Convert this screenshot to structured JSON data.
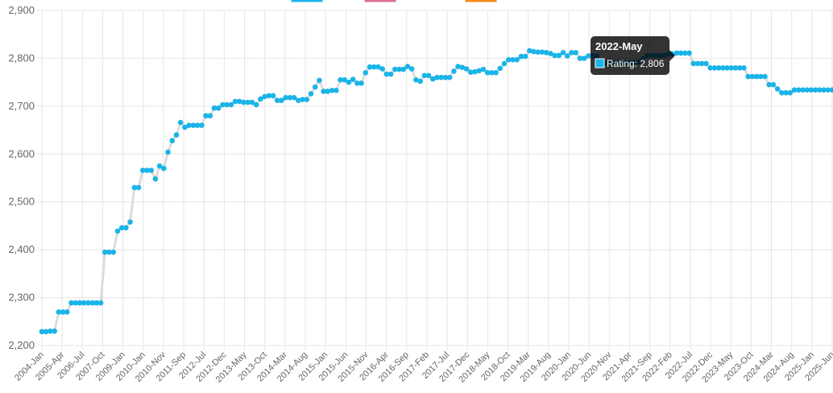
{
  "chart_data": {
    "type": "line",
    "title": "",
    "xlabel": "",
    "ylabel": "",
    "ylim": [
      2200,
      2900
    ],
    "y_ticks": [
      "2,200",
      "2,300",
      "2,400",
      "2,500",
      "2,600",
      "2,700",
      "2,800",
      "2,900"
    ],
    "x_tick_labels": [
      "2004-Jan",
      "2005-Apr",
      "2006-Jul",
      "2007-Oct",
      "2009-Jan",
      "2010-Jan",
      "2010-Nov",
      "2011-Sep",
      "2012-Jul",
      "2012-Dec",
      "2013-May",
      "2013-Oct",
      "2014-Mar",
      "2014-Aug",
      "2015-Jan",
      "2015-Jun",
      "2015-Nov",
      "2016-Apr",
      "2016-Sep",
      "2017-Feb",
      "2017-Jul",
      "2017-Dec",
      "2018-May",
      "2018-Oct",
      "2019-Mar",
      "2019-Aug",
      "2020-Jan",
      "2020-Jun",
      "2020-Nov",
      "2021-Apr",
      "2021-Sep",
      "2022-Feb",
      "2022-Jul",
      "2022-Dec",
      "2023-May",
      "2023-Oct",
      "2024-Mar",
      "2024-Aug",
      "2025-Jan",
      "2025-Jun"
    ],
    "grid": true,
    "legend": {
      "position": "top",
      "swatch_colors": [
        "#1ab4e8",
        "#d9708f",
        "#f58a1f"
      ]
    },
    "series": [
      {
        "color": "#1ab4e8",
        "values": [
          2229,
          2229,
          2230,
          2230,
          2270,
          2270,
          2270,
          2289,
          2289,
          2289,
          2289,
          2289,
          2289,
          2289,
          2289,
          2395,
          2395,
          2395,
          2439,
          2446,
          2446,
          2458,
          2530,
          2530,
          2566,
          2566,
          2566,
          2548,
          2575,
          2570,
          2604,
          2628,
          2640,
          2666,
          2656,
          2660,
          2660,
          2660,
          2660,
          2680,
          2680,
          2696,
          2696,
          2703,
          2703,
          2703,
          2710,
          2710,
          2708,
          2708,
          2708,
          2703,
          2715,
          2720,
          2722,
          2722,
          2712,
          2712,
          2718,
          2718,
          2718,
          2712,
          2714,
          2714,
          2726,
          2740,
          2754,
          2731,
          2731,
          2733,
          2733,
          2755,
          2755,
          2750,
          2756,
          2748,
          2748,
          2770,
          2782,
          2782,
          2782,
          2778,
          2767,
          2767,
          2777,
          2777,
          2777,
          2783,
          2778,
          2755,
          2752,
          2764,
          2764,
          2757,
          2760,
          2760,
          2760,
          2760,
          2773,
          2783,
          2781,
          2778,
          2771,
          2772,
          2774,
          2777,
          2770,
          2770,
          2770,
          2779,
          2789,
          2797,
          2797,
          2797,
          2804,
          2804,
          2816,
          2814,
          2813,
          2813,
          2812,
          2810,
          2806,
          2806,
          2812,
          2805,
          2812,
          2812,
          2800,
          2800,
          2805,
          2805,
          2805,
          2791,
          2791,
          2791,
          2791,
          2791,
          2791,
          2791,
          2791,
          2792,
          2792,
          2799,
          2806,
          2806,
          2806,
          2806,
          2806,
          2809,
          2809,
          2811,
          2811,
          2811,
          2811,
          2789,
          2789,
          2789,
          2789,
          2780,
          2780,
          2780,
          2780,
          2780,
          2780,
          2780,
          2780,
          2780,
          2762,
          2762,
          2762,
          2762,
          2762,
          2745,
          2745,
          2736,
          2728,
          2728,
          2728,
          2734,
          2734,
          2734,
          2734,
          2734,
          2734,
          2734,
          2734,
          2734,
          2734
        ]
      }
    ],
    "tooltip": {
      "title": "2022-May",
      "label": "Rating: 2,806"
    }
  }
}
